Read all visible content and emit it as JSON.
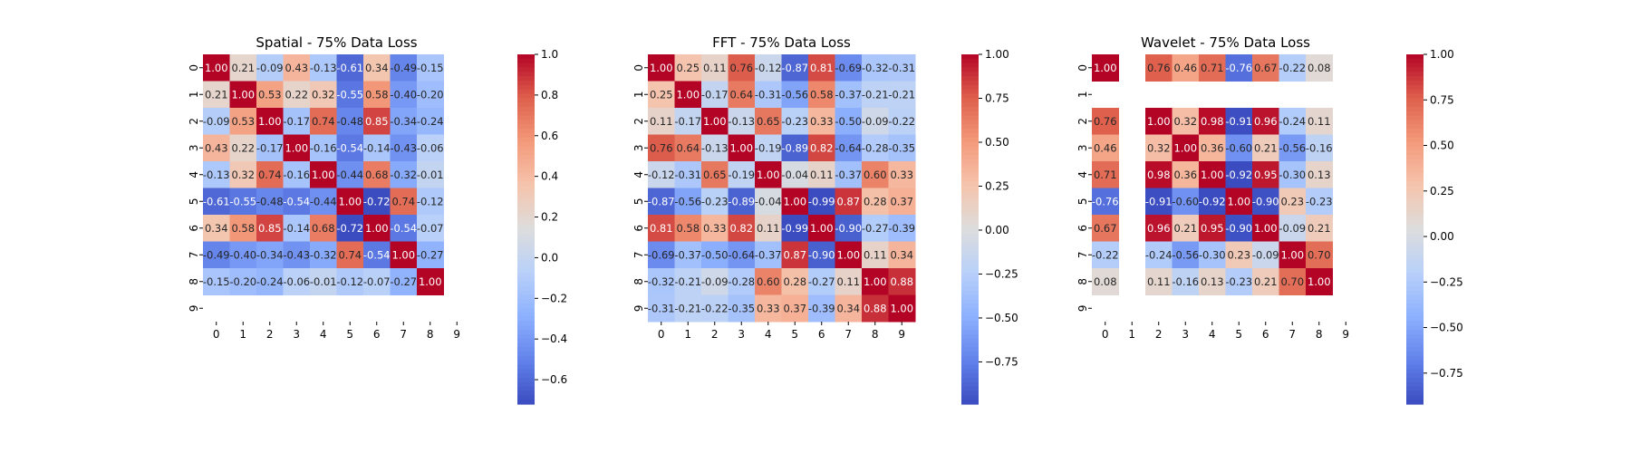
{
  "chart_data": [
    {
      "type": "heatmap",
      "title": "Spatial - 75% Data Loss",
      "xticklabels": [
        "0",
        "1",
        "2",
        "3",
        "4",
        "5",
        "6",
        "7",
        "8",
        "9"
      ],
      "yticklabels": [
        "0",
        "1",
        "2",
        "3",
        "4",
        "5",
        "6",
        "7",
        "8",
        "9"
      ],
      "colormap": "coolwarm",
      "vmin": -0.72,
      "vmax": 1.0,
      "colorbar_ticks": [
        "1.0",
        "0.8",
        "0.6",
        "0.4",
        "0.2",
        "0.0",
        "−0.2",
        "−0.4",
        "−0.6"
      ],
      "colorbar_tick_values": [
        1.0,
        0.8,
        0.6,
        0.4,
        0.2,
        0.0,
        -0.2,
        -0.4,
        -0.6
      ],
      "matrix": [
        [
          1.0,
          0.21,
          -0.09,
          0.43,
          -0.13,
          -0.61,
          0.34,
          -0.49,
          -0.15,
          null
        ],
        [
          0.21,
          1.0,
          0.53,
          0.22,
          0.32,
          -0.55,
          0.58,
          -0.4,
          -0.2,
          null
        ],
        [
          -0.09,
          0.53,
          1.0,
          -0.17,
          0.74,
          -0.48,
          0.85,
          -0.34,
          -0.24,
          null
        ],
        [
          0.43,
          0.22,
          -0.17,
          1.0,
          -0.16,
          -0.54,
          -0.14,
          -0.43,
          -0.06,
          null
        ],
        [
          -0.13,
          0.32,
          0.74,
          -0.16,
          1.0,
          -0.44,
          0.68,
          -0.32,
          -0.01,
          null
        ],
        [
          -0.61,
          -0.55,
          -0.48,
          -0.54,
          -0.44,
          1.0,
          -0.72,
          0.74,
          -0.12,
          null
        ],
        [
          0.34,
          0.58,
          0.85,
          -0.14,
          0.68,
          -0.72,
          1.0,
          -0.54,
          -0.07,
          null
        ],
        [
          -0.49,
          -0.4,
          -0.34,
          -0.43,
          -0.32,
          0.74,
          -0.54,
          1.0,
          -0.27,
          null
        ],
        [
          -0.15,
          -0.2,
          -0.24,
          -0.06,
          -0.01,
          -0.12,
          -0.07,
          -0.27,
          1.0,
          null
        ],
        [
          null,
          null,
          null,
          null,
          null,
          null,
          null,
          null,
          null,
          null
        ]
      ],
      "labels": [
        [
          "1.00",
          "0.21",
          "-0.09",
          "0.43",
          "-0.13",
          "-0.61",
          "0.34",
          "-0.49",
          "-0.15",
          ""
        ],
        [
          "0.21",
          "1.00",
          "0.53",
          "0.22",
          "0.32",
          "-0.55",
          "0.58",
          "-0.40",
          "-0.20",
          ""
        ],
        [
          "-0.09",
          "0.53",
          "1.00",
          "-0.17",
          "0.74",
          "-0.48",
          "0.85",
          "-0.34",
          "-0.24",
          ""
        ],
        [
          "0.43",
          "0.22",
          "-0.17",
          "1.00",
          "-0.16",
          "-0.54",
          "-0.14",
          "-0.43",
          "-0.06",
          ""
        ],
        [
          "-0.13",
          "0.32",
          "0.74",
          "-0.16",
          "1.00",
          "-0.44",
          "0.68",
          "-0.32",
          "-0.01",
          ""
        ],
        [
          "-0.61",
          "-0.55",
          "-0.48",
          "-0.54",
          "-0.44",
          "1.00",
          "-0.72",
          "0.74",
          "-0.12",
          ""
        ],
        [
          "0.34",
          "0.58",
          "0.85",
          "-0.14",
          "0.68",
          "-0.72",
          "1.00",
          "-0.54",
          "-0.07",
          ""
        ],
        [
          "-0.49",
          "-0.40",
          "-0.34",
          "-0.43",
          "-0.32",
          "0.74",
          "-0.54",
          "1.00",
          "-0.27",
          ""
        ],
        [
          "-0.15",
          "-0.20",
          "-0.24",
          "-0.06",
          "-0.01",
          "-0.12",
          "-0.07",
          "-0.27",
          "1.00",
          ""
        ],
        [
          "",
          "",
          "",
          "",
          "",
          "",
          "",
          "",
          "",
          ""
        ]
      ]
    },
    {
      "type": "heatmap",
      "title": "FFT - 75% Data Loss",
      "xticklabels": [
        "0",
        "1",
        "2",
        "3",
        "4",
        "5",
        "6",
        "7",
        "8",
        "9"
      ],
      "yticklabels": [
        "0",
        "1",
        "2",
        "3",
        "4",
        "5",
        "6",
        "7",
        "8",
        "9"
      ],
      "colormap": "coolwarm",
      "vmin": -0.99,
      "vmax": 1.0,
      "colorbar_ticks": [
        "1.00",
        "0.75",
        "0.50",
        "0.25",
        "0.00",
        "−0.25",
        "−0.50",
        "−0.75"
      ],
      "colorbar_tick_values": [
        1.0,
        0.75,
        0.5,
        0.25,
        0.0,
        -0.25,
        -0.5,
        -0.75
      ],
      "matrix": [
        [
          1.0,
          0.25,
          0.11,
          0.76,
          -0.12,
          -0.87,
          0.81,
          -0.69,
          -0.32,
          -0.31
        ],
        [
          0.25,
          1.0,
          -0.17,
          0.64,
          -0.31,
          -0.56,
          0.58,
          -0.37,
          -0.21,
          -0.21
        ],
        [
          0.11,
          -0.17,
          1.0,
          -0.13,
          0.65,
          -0.23,
          0.33,
          -0.5,
          -0.09,
          -0.22
        ],
        [
          0.76,
          0.64,
          -0.13,
          1.0,
          -0.19,
          -0.89,
          0.82,
          -0.64,
          -0.28,
          -0.35
        ],
        [
          -0.12,
          -0.31,
          0.65,
          -0.19,
          1.0,
          -0.04,
          0.11,
          -0.37,
          0.6,
          0.33
        ],
        [
          -0.87,
          -0.56,
          -0.23,
          -0.89,
          -0.04,
          1.0,
          -0.99,
          0.87,
          0.28,
          0.37
        ],
        [
          0.81,
          0.58,
          0.33,
          0.82,
          0.11,
          -0.99,
          1.0,
          -0.9,
          -0.27,
          -0.39
        ],
        [
          -0.69,
          -0.37,
          -0.5,
          -0.64,
          -0.37,
          0.87,
          -0.9,
          1.0,
          0.11,
          0.34
        ],
        [
          -0.32,
          -0.21,
          -0.09,
          -0.28,
          0.6,
          0.28,
          -0.27,
          0.11,
          1.0,
          0.88
        ],
        [
          -0.31,
          -0.21,
          -0.22,
          -0.35,
          0.33,
          0.37,
          -0.39,
          0.34,
          0.88,
          1.0
        ]
      ],
      "labels": [
        [
          "1.00",
          "0.25",
          "0.11",
          "0.76",
          "-0.12",
          "-0.87",
          "0.81",
          "-0.69",
          "-0.32",
          "-0.31"
        ],
        [
          "0.25",
          "1.00",
          "-0.17",
          "0.64",
          "-0.31",
          "-0.56",
          "0.58",
          "-0.37",
          "-0.21",
          "-0.21"
        ],
        [
          "0.11",
          "-0.17",
          "1.00",
          "-0.13",
          "0.65",
          "-0.23",
          "0.33",
          "-0.50",
          "-0.09",
          "-0.22"
        ],
        [
          "0.76",
          "0.64",
          "-0.13",
          "1.00",
          "-0.19",
          "-0.89",
          "0.82",
          "-0.64",
          "-0.28",
          "-0.35"
        ],
        [
          "-0.12",
          "-0.31",
          "0.65",
          "-0.19",
          "1.00",
          "-0.04",
          "0.11",
          "-0.37",
          "0.60",
          "0.33"
        ],
        [
          "-0.87",
          "-0.56",
          "-0.23",
          "-0.89",
          "-0.04",
          "1.00",
          "-0.99",
          "0.87",
          "0.28",
          "0.37"
        ],
        [
          "0.81",
          "0.58",
          "0.33",
          "0.82",
          "0.11",
          "-0.99",
          "1.00",
          "-0.90",
          "-0.27",
          "-0.39"
        ],
        [
          "-0.69",
          "-0.37",
          "-0.50",
          "-0.64",
          "-0.37",
          "0.87",
          "-0.90",
          "1.00",
          "0.11",
          "0.34"
        ],
        [
          "-0.32",
          "-0.21",
          "-0.09",
          "-0.28",
          "0.60",
          "0.28",
          "-0.27",
          "0.11",
          "1.00",
          "0.88"
        ],
        [
          "-0.31",
          "-0.21",
          "-0.22",
          "-0.35",
          "0.33",
          "0.37",
          "-0.39",
          "0.34",
          "0.88",
          "1.00"
        ]
      ]
    },
    {
      "type": "heatmap",
      "title": "Wavelet - 75% Data Loss",
      "xticklabels": [
        "0",
        "1",
        "2",
        "3",
        "4",
        "5",
        "6",
        "7",
        "8",
        "9"
      ],
      "yticklabels": [
        "0",
        "1",
        "2",
        "3",
        "4",
        "5",
        "6",
        "7",
        "8",
        "9"
      ],
      "colormap": "coolwarm",
      "vmin": -0.92,
      "vmax": 1.0,
      "colorbar_ticks": [
        "1.00",
        "0.75",
        "0.50",
        "0.25",
        "0.00",
        "−0.25",
        "−0.50",
        "−0.75"
      ],
      "colorbar_tick_values": [
        1.0,
        0.75,
        0.5,
        0.25,
        0.0,
        -0.25,
        -0.5,
        -0.75
      ],
      "matrix": [
        [
          1.0,
          null,
          0.76,
          0.46,
          0.71,
          -0.76,
          0.67,
          -0.22,
          0.08,
          null
        ],
        [
          null,
          null,
          null,
          null,
          null,
          null,
          null,
          null,
          null,
          null
        ],
        [
          0.76,
          null,
          1.0,
          0.32,
          0.98,
          -0.91,
          0.96,
          -0.24,
          0.11,
          null
        ],
        [
          0.46,
          null,
          0.32,
          1.0,
          0.36,
          -0.6,
          0.21,
          -0.56,
          -0.16,
          null
        ],
        [
          0.71,
          null,
          0.98,
          0.36,
          1.0,
          -0.92,
          0.95,
          -0.3,
          0.13,
          null
        ],
        [
          -0.76,
          null,
          -0.91,
          -0.6,
          -0.92,
          1.0,
          -0.9,
          0.23,
          -0.23,
          null
        ],
        [
          0.67,
          null,
          0.96,
          0.21,
          0.95,
          -0.9,
          1.0,
          -0.09,
          0.21,
          null
        ],
        [
          -0.22,
          null,
          -0.24,
          -0.56,
          -0.3,
          0.23,
          -0.09,
          1.0,
          0.7,
          null
        ],
        [
          0.08,
          null,
          0.11,
          -0.16,
          0.13,
          -0.23,
          0.21,
          0.7,
          1.0,
          null
        ],
        [
          null,
          null,
          null,
          null,
          null,
          null,
          null,
          null,
          null,
          null
        ]
      ],
      "labels": [
        [
          "1.00",
          "",
          "0.76",
          "0.46",
          "0.71",
          "-0.76",
          "0.67",
          "-0.22",
          "0.08",
          ""
        ],
        [
          "",
          "",
          "",
          "",
          "",
          "",
          "",
          "",
          "",
          ""
        ],
        [
          "0.76",
          "",
          "1.00",
          "0.32",
          "0.98",
          "-0.91",
          "0.96",
          "-0.24",
          "0.11",
          ""
        ],
        [
          "0.46",
          "",
          "0.32",
          "1.00",
          "0.36",
          "-0.60",
          "0.21",
          "-0.56",
          "-0.16",
          ""
        ],
        [
          "0.71",
          "",
          "0.98",
          "0.36",
          "1.00",
          "-0.92",
          "0.95",
          "-0.30",
          "0.13",
          ""
        ],
        [
          "-0.76",
          "",
          "-0.91",
          "-0.60",
          "-0.92",
          "1.00",
          "-0.90",
          "0.23",
          "-0.23",
          ""
        ],
        [
          "0.67",
          "",
          "0.96",
          "0.21",
          "0.95",
          "-0.90",
          "1.00",
          "-0.09",
          "0.21",
          ""
        ],
        [
          "-0.22",
          "",
          "-0.24",
          "-0.56",
          "-0.30",
          "0.23",
          "-0.09",
          "1.00",
          "0.70",
          ""
        ],
        [
          "0.08",
          "",
          "0.11",
          "-0.16",
          "0.13",
          "-0.23",
          "0.21",
          "0.70",
          "1.00",
          ""
        ],
        [
          "",
          "",
          "",
          "",
          "",
          "",
          "",
          "",
          "",
          ""
        ]
      ]
    }
  ]
}
